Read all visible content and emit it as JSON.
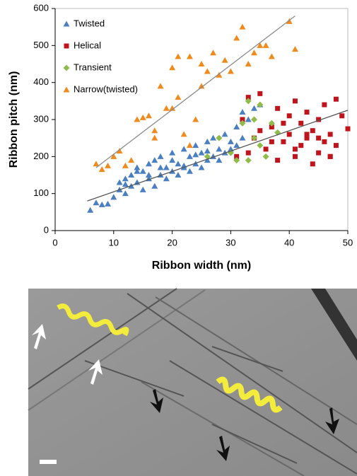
{
  "chart_data": {
    "type": "scatter",
    "x_label": "Ribbon width (nm)",
    "y_label": "Ribbon pitch (nm)",
    "xlim": [
      0,
      50
    ],
    "ylim": [
      0,
      600
    ],
    "xticks": [
      0,
      10,
      20,
      30,
      40,
      50
    ],
    "yticks": [
      0,
      100,
      200,
      300,
      400,
      500,
      600
    ],
    "legend": "upper left",
    "series": [
      {
        "name": "Twisted",
        "color": "#4a7fc1",
        "marker": "triangle",
        "x": [
          6,
          7,
          8,
          9,
          10,
          11,
          11,
          12,
          12,
          13,
          13,
          14,
          14,
          15,
          15,
          16,
          16,
          17,
          17,
          18,
          18,
          19,
          19,
          20,
          20,
          21,
          21,
          22,
          22,
          23,
          23,
          24,
          24,
          25,
          25,
          26,
          26,
          27,
          27,
          28,
          28,
          29,
          29,
          30,
          30,
          31,
          31,
          32,
          32,
          33,
          34,
          35,
          12,
          14,
          16,
          18,
          20,
          22,
          24,
          26
        ],
        "values": [
          55,
          75,
          70,
          72,
          90,
          110,
          130,
          100,
          140,
          120,
          150,
          130,
          170,
          110,
          160,
          140,
          180,
          120,
          190,
          150,
          200,
          140,
          170,
          160,
          210,
          150,
          180,
          170,
          220,
          160,
          200,
          180,
          230,
          170,
          210,
          190,
          240,
          200,
          250,
          190,
          220,
          210,
          260,
          220,
          240,
          230,
          280,
          250,
          320,
          300,
          330,
          340,
          125,
          160,
          150,
          170,
          190,
          175,
          205,
          215
        ]
      },
      {
        "name": "Helical",
        "color": "#c0141c",
        "marker": "square",
        "x": [
          31,
          32,
          33,
          34,
          35,
          36,
          37,
          38,
          38,
          39,
          40,
          40,
          41,
          41,
          42,
          42,
          43,
          43,
          44,
          44,
          45,
          45,
          46,
          46,
          47,
          47,
          48,
          48,
          49,
          50,
          33,
          35,
          37,
          39,
          41,
          43,
          45,
          47
        ],
        "values": [
          200,
          300,
          360,
          250,
          370,
          220,
          280,
          330,
          190,
          240,
          260,
          310,
          200,
          350,
          230,
          290,
          250,
          320,
          180,
          270,
          210,
          300,
          240,
          340,
          200,
          260,
          230,
          355,
          310,
          275,
          210,
          270,
          240,
          290,
          220,
          260,
          250,
          200
        ]
      },
      {
        "name": "Transient",
        "color": "#8fbb4a",
        "marker": "diamond",
        "x": [
          26,
          28,
          30,
          31,
          32,
          33,
          33,
          34,
          34,
          35,
          35,
          36,
          37,
          38
        ],
        "values": [
          200,
          250,
          210,
          190,
          290,
          350,
          190,
          250,
          300,
          340,
          230,
          200,
          290,
          265
        ]
      },
      {
        "name": "Narrow(twisted)",
        "color": "#f08a1c",
        "marker": "triangle",
        "x": [
          7,
          8,
          9,
          10,
          11,
          12,
          13,
          14,
          15,
          16,
          17,
          17,
          18,
          19,
          20,
          20,
          21,
          22,
          23,
          24,
          25,
          25,
          26,
          27,
          28,
          29,
          30,
          31,
          32,
          33,
          34,
          35,
          36,
          37,
          40,
          41,
          21,
          23
        ],
        "values": [
          180,
          165,
          175,
          200,
          215,
          175,
          190,
          300,
          305,
          310,
          250,
          270,
          390,
          330,
          440,
          330,
          360,
          260,
          470,
          300,
          450,
          390,
          430,
          480,
          420,
          460,
          430,
          520,
          550,
          450,
          480,
          500,
          500,
          470,
          565,
          490,
          470,
          230
        ]
      }
    ],
    "trendlines": [
      {
        "color": "#8a8a8a",
        "x": [
          7,
          41
        ],
        "values": [
          170,
          580
        ]
      },
      {
        "color": "#555555",
        "x": [
          5.5,
          50
        ],
        "values": [
          80,
          325
        ]
      }
    ]
  }
}
